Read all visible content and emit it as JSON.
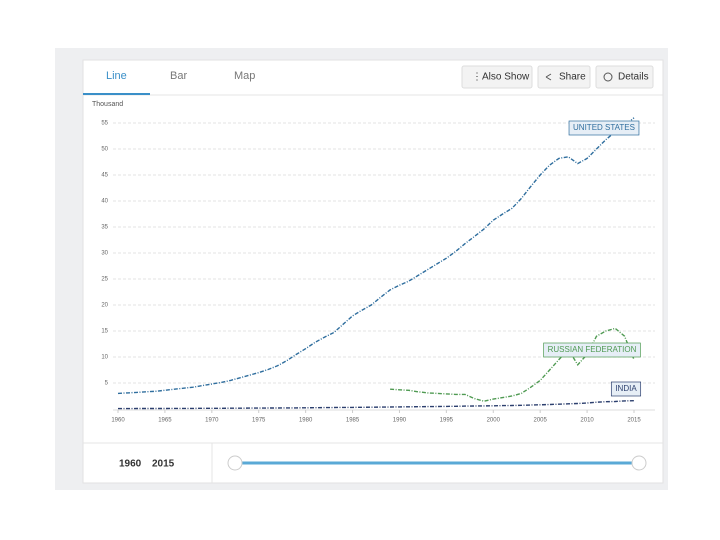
{
  "tabs": [
    "Line",
    "Bar",
    "Map"
  ],
  "buttons": [
    "Also Show",
    "Share",
    "Details"
  ],
  "slider": {
    "from": 1960,
    "to": 2015
  },
  "chart_data": {
    "type": "line",
    "y_label": "Thousand",
    "x": [
      1960,
      1961,
      1962,
      1963,
      1964,
      1965,
      1966,
      1967,
      1968,
      1969,
      1970,
      1971,
      1972,
      1973,
      1974,
      1975,
      1976,
      1977,
      1978,
      1979,
      1980,
      1981,
      1982,
      1983,
      1984,
      1985,
      1986,
      1987,
      1988,
      1989,
      1990,
      1991,
      1992,
      1993,
      1994,
      1995,
      1996,
      1997,
      1998,
      1999,
      2000,
      2001,
      2002,
      2003,
      2004,
      2005,
      2006,
      2007,
      2008,
      2009,
      2010,
      2011,
      2012,
      2013,
      2014,
      2015
    ],
    "series": [
      {
        "name": "UNITED STATES",
        "color": "#2f6e9e",
        "values": [
          3.0,
          3.1,
          3.2,
          3.3,
          3.4,
          3.6,
          3.8,
          4.0,
          4.2,
          4.5,
          4.8,
          5.1,
          5.5,
          6.0,
          6.5,
          7.0,
          7.6,
          8.3,
          9.3,
          10.5,
          11.6,
          12.8,
          13.8,
          14.7,
          16.3,
          17.9,
          19.0,
          20.0,
          21.5,
          22.9,
          23.8,
          24.6,
          25.7,
          26.8,
          27.9,
          29.0,
          30.3,
          31.8,
          33.2,
          34.6,
          36.3,
          37.5,
          38.6,
          40.5,
          42.8,
          45.0,
          46.9,
          48.2,
          48.5,
          47.2,
          48.2,
          50.0,
          51.8,
          53.3,
          54.5,
          56.0
        ]
      },
      {
        "name": "RUSSIAN FEDERATION",
        "color": "#4f9a52",
        "values": [
          null,
          null,
          null,
          null,
          null,
          null,
          null,
          null,
          null,
          null,
          null,
          null,
          null,
          null,
          null,
          null,
          null,
          null,
          null,
          null,
          null,
          null,
          null,
          null,
          null,
          null,
          null,
          null,
          null,
          3.8,
          3.7,
          3.6,
          3.3,
          3.1,
          3.0,
          2.9,
          2.8,
          2.8,
          2.0,
          1.5,
          1.9,
          2.2,
          2.5,
          3.0,
          4.2,
          5.5,
          7.5,
          9.5,
          11.5,
          8.5,
          10.5,
          14.0,
          15.0,
          15.5,
          14.0,
          9.5
        ]
      },
      {
        "name": "INDIA",
        "color": "#2c3f6e",
        "values": [
          0.08,
          0.08,
          0.09,
          0.09,
          0.1,
          0.1,
          0.11,
          0.12,
          0.12,
          0.13,
          0.14,
          0.14,
          0.15,
          0.16,
          0.17,
          0.18,
          0.19,
          0.2,
          0.21,
          0.22,
          0.24,
          0.25,
          0.27,
          0.28,
          0.3,
          0.31,
          0.33,
          0.35,
          0.37,
          0.39,
          0.41,
          0.43,
          0.45,
          0.46,
          0.48,
          0.5,
          0.52,
          0.55,
          0.57,
          0.6,
          0.62,
          0.65,
          0.68,
          0.72,
          0.76,
          0.8,
          0.86,
          0.93,
          1.0,
          1.05,
          1.15,
          1.3,
          1.4,
          1.45,
          1.55,
          1.6
        ]
      }
    ],
    "xlim": [
      1960,
      2015
    ],
    "ylim": [
      0,
      57
    ],
    "xticks": [
      1960,
      1965,
      1970,
      1975,
      1980,
      1985,
      1990,
      1995,
      2000,
      2005,
      2010,
      2015
    ],
    "yticks": [
      5,
      10,
      15,
      20,
      25,
      30,
      35,
      40,
      45,
      50,
      55
    ],
    "grid": true
  }
}
